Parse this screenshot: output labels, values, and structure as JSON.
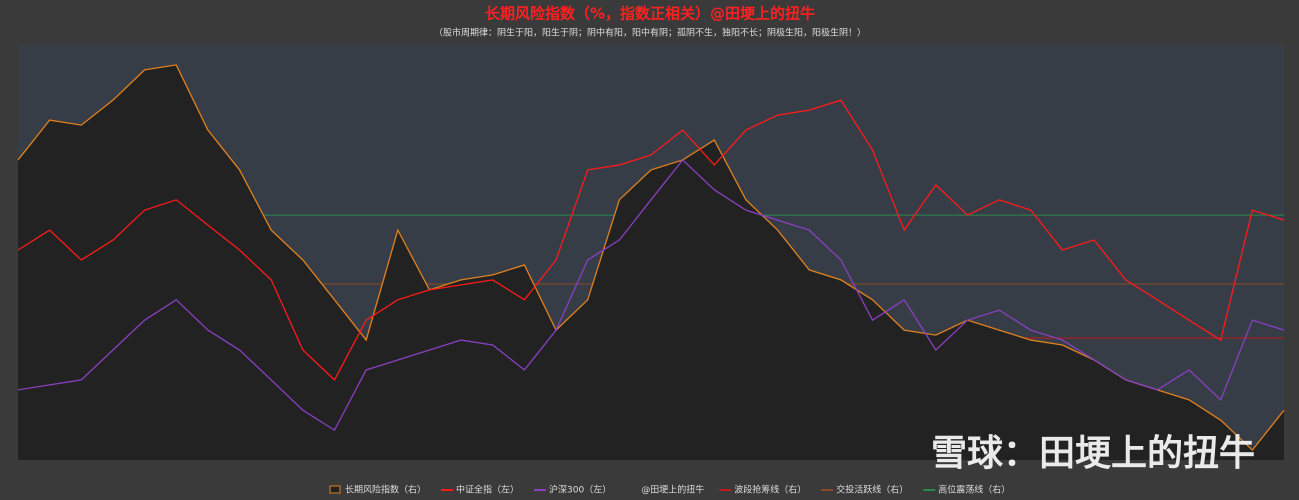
{
  "chart_data": {
    "type": "area-line",
    "title": "长期风险指数（%，指数正相关）@田埂上的扭牛",
    "subtitle": "（股市周期律：阴生于阳，阳生于阴；阴中有阳，阳中有阴；孤阴不生，独阳不长；阴极生阳，阳极生阴！）",
    "watermark": "雪球：田埂上的扭牛",
    "legend_note": "@田埂上的扭牛",
    "ylim": [
      0,
      100
    ],
    "y2lim": [
      0,
      100
    ],
    "series": [
      {
        "name": "长期风险指数（右）",
        "color": "#e0801e",
        "fill": "#222222",
        "axis": "y2",
        "style": "area",
        "values": [
          72.3,
          81.9,
          80.7,
          86.7,
          94.0,
          95.2,
          79.5,
          69.9,
          55.4,
          48.2,
          38.6,
          28.9,
          55.4,
          41.0,
          43.4,
          44.6,
          47.0,
          31.3,
          38.6,
          62.7,
          69.9,
          72.3,
          77.1,
          62.7,
          55.4,
          45.8,
          43.4,
          38.6,
          31.3,
          30.1,
          33.7,
          31.3,
          28.9,
          27.7,
          24.1,
          19.3,
          16.9,
          14.5,
          9.6,
          2.4,
          12.0
        ]
      },
      {
        "name": "中证全指（左）",
        "color": "#ff1a1a",
        "style": "line",
        "values": [
          50.6,
          55.4,
          48.2,
          53.0,
          60.2,
          62.7,
          56.6,
          50.6,
          43.4,
          26.5,
          19.3,
          33.7,
          38.6,
          41.0,
          42.2,
          43.4,
          38.6,
          48.2,
          69.9,
          71.1,
          73.5,
          79.5,
          71.1,
          79.5,
          83.1,
          84.3,
          86.7,
          74.7,
          55.4,
          66.3,
          59.0,
          62.7,
          60.2,
          50.6,
          53.0,
          43.4,
          38.6,
          33.7,
          28.9,
          60.2,
          57.8
        ]
      },
      {
        "name": "沪深300（左）",
        "color": "#8a3fc0",
        "style": "line",
        "values": [
          16.9,
          18.1,
          19.3,
          26.5,
          33.7,
          38.6,
          31.3,
          26.5,
          19.3,
          12.0,
          7.2,
          21.7,
          24.1,
          26.5,
          28.9,
          27.7,
          21.7,
          31.3,
          48.2,
          53.0,
          62.7,
          72.3,
          65.1,
          60.2,
          57.8,
          55.4,
          48.2,
          33.7,
          38.6,
          26.5,
          33.7,
          36.1,
          31.3,
          28.9,
          24.1,
          19.3,
          16.9,
          21.7,
          14.5,
          33.7,
          31.3
        ]
      }
    ],
    "reference_lines": [
      {
        "name": "波段抢筹线（右）",
        "color": "#c0181c",
        "value": 29.4
      },
      {
        "name": "交投活跃线（右）",
        "color": "#8a4a2a",
        "value": 42.4
      },
      {
        "name": "高位震荡线（右）",
        "color": "#2a8a4a",
        "value": 59.0
      }
    ]
  }
}
